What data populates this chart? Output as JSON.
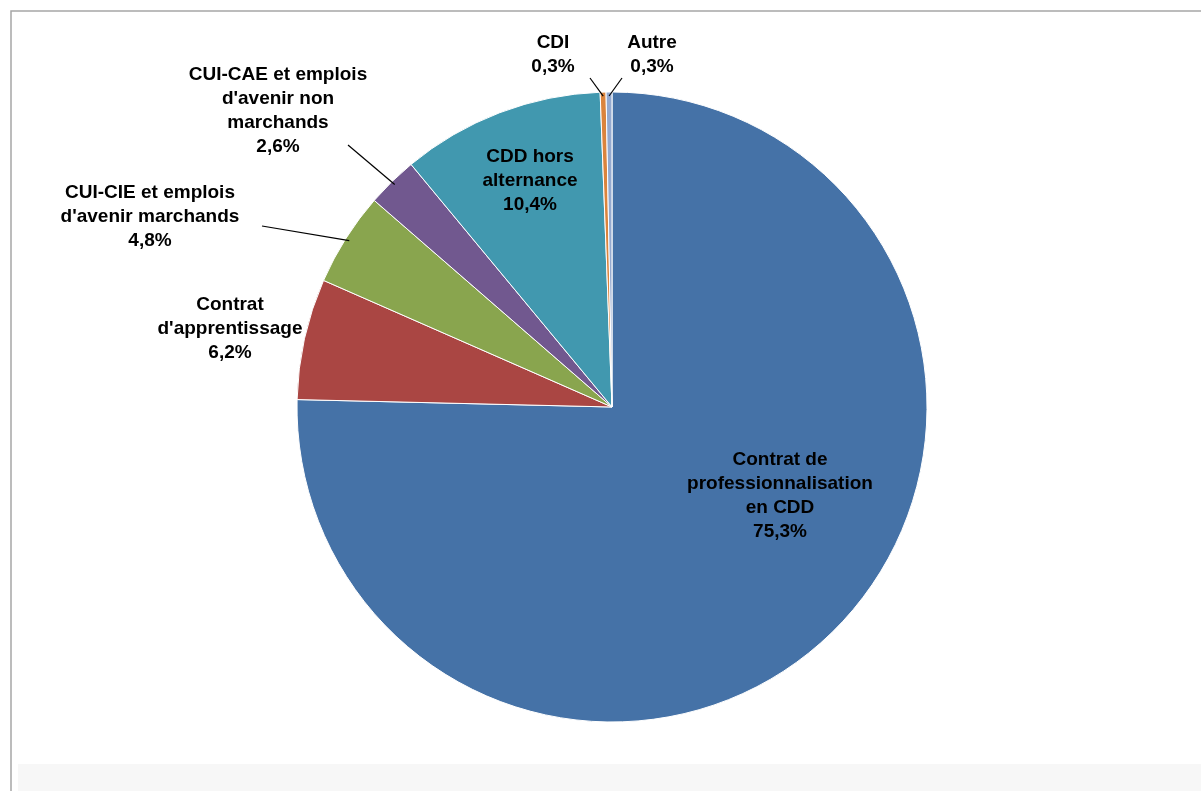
{
  "chart_data": {
    "type": "pie",
    "categories": [
      "Contrat de professionnalisation en CDD",
      "Contrat d'apprentissage",
      "CUI-CIE et emplois d'avenir marchands",
      "CUI-CAE et emplois d'avenir non marchands",
      "CDD hors alternance",
      "CDI",
      "Autre"
    ],
    "values": [
      75.3,
      6.2,
      4.8,
      2.6,
      10.4,
      0.3,
      0.3
    ],
    "value_labels": [
      "75,3%",
      "6,2%",
      "4,8%",
      "2,6%",
      "10,4%",
      "0,3%",
      "0,3%"
    ],
    "colors": [
      "#4572a7",
      "#aa4643",
      "#89a54e",
      "#71588f",
      "#4198af",
      "#db843d",
      "#93a9cf"
    ]
  }
}
